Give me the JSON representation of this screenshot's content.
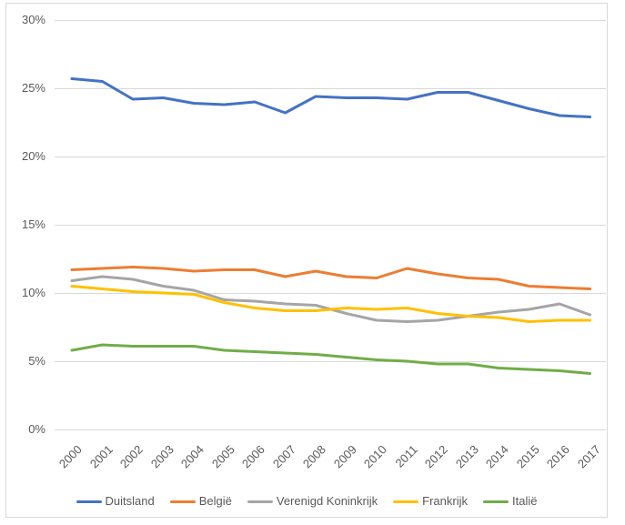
{
  "chart": {
    "frame_border_color": "#d9d9d9",
    "gridline_color": "#d9d9d9",
    "axis_text_color": "#595959",
    "background": "#ffffff"
  },
  "chart_data": {
    "type": "line",
    "title": "",
    "unit": "%",
    "categories": [
      "2000",
      "2001",
      "2002",
      "2003",
      "2004",
      "2005",
      "2006",
      "2007",
      "2008",
      "2009",
      "2010",
      "2011",
      "2012",
      "2013",
      "2014",
      "2015",
      "2016",
      "2017"
    ],
    "ylim": [
      0,
      30
    ],
    "y_ticks": [
      {
        "value": 0,
        "label": "0%"
      },
      {
        "value": 5,
        "label": "5%"
      },
      {
        "value": 10,
        "label": "10%"
      },
      {
        "value": 15,
        "label": "15%"
      },
      {
        "value": 20,
        "label": "20%"
      },
      {
        "value": 25,
        "label": "25%"
      },
      {
        "value": 30,
        "label": "30%"
      }
    ],
    "grid": "horizontal",
    "legend_position": "bottom",
    "series": [
      {
        "name": "Duitsland",
        "color": "#4472C4",
        "values": [
          25.7,
          25.5,
          24.2,
          24.3,
          23.9,
          23.8,
          24.0,
          23.2,
          24.4,
          24.3,
          24.3,
          24.2,
          24.7,
          24.7,
          24.1,
          23.5,
          23.0,
          22.9
        ]
      },
      {
        "name": "België",
        "color": "#ED7D31",
        "values": [
          11.7,
          11.8,
          11.9,
          11.8,
          11.6,
          11.7,
          11.7,
          11.2,
          11.6,
          11.2,
          11.1,
          11.8,
          11.4,
          11.1,
          11.0,
          10.5,
          10.4,
          10.3
        ]
      },
      {
        "name": "Verenigd Koninkrijk",
        "color": "#A5A5A5",
        "values": [
          10.9,
          11.2,
          11.0,
          10.5,
          10.2,
          9.5,
          9.4,
          9.2,
          9.1,
          8.5,
          8.0,
          7.9,
          8.0,
          8.3,
          8.6,
          8.8,
          9.2,
          8.4
        ]
      },
      {
        "name": "Frankrijk",
        "color": "#FFC000",
        "values": [
          10.5,
          10.3,
          10.1,
          10.0,
          9.9,
          9.3,
          8.9,
          8.7,
          8.7,
          8.9,
          8.8,
          8.9,
          8.5,
          8.3,
          8.2,
          7.9,
          8.0,
          8.0
        ]
      },
      {
        "name": "Italië",
        "color": "#70AD47",
        "values": [
          5.8,
          6.2,
          6.1,
          6.1,
          6.1,
          5.8,
          5.7,
          5.6,
          5.5,
          5.3,
          5.1,
          5.0,
          4.8,
          4.8,
          4.5,
          4.4,
          4.3,
          4.1
        ]
      }
    ]
  }
}
